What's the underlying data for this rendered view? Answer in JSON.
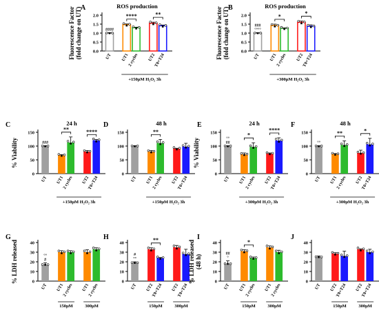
{
  "chart_data": [
    {
      "panel": "A",
      "type": "bar",
      "title": "ROS production",
      "ylabel": "Fluorescence Factor\n(fold change on UT)",
      "ylim": [
        0,
        2
      ],
      "yticks": [
        0,
        0.5,
        1,
        1.5,
        2
      ],
      "ytick_labels": [
        "0.0",
        "0.5",
        "1.0",
        "1.5",
        "2.0"
      ],
      "categories": [
        "UT",
        "UT1",
        "2 cycles",
        "UT2",
        "T0+T24"
      ],
      "values": [
        1.0,
        1.47,
        1.3,
        1.55,
        1.41
      ],
      "errors": [
        0.02,
        0.04,
        0.03,
        0.06,
        0.04
      ],
      "bar_colors": [
        "#a0a0a0",
        "#ff8a00",
        "#2dbb2d",
        "#ff1a1a",
        "#1a1aff"
      ],
      "style": "outline",
      "groups": [
        [
          0
        ],
        [
          1,
          2
        ],
        [
          3,
          4
        ]
      ],
      "treatment": "+150μM H₂O₂ 3h",
      "treatment_span": [
        1,
        4
      ],
      "ut_marker": "####",
      "brackets": [
        {
          "from": 1,
          "to": 2,
          "label": "****"
        },
        {
          "from": 3,
          "to": 4,
          "label": "**"
        }
      ]
    },
    {
      "panel": "B",
      "type": "bar",
      "title": "ROS production",
      "ylabel": "Fluorescence Factor\n(fold change on UT)",
      "ylim": [
        0,
        2
      ],
      "yticks": [
        0,
        0.5,
        1,
        1.5,
        2
      ],
      "ytick_labels": [
        "0.0",
        "0.5",
        "1.0",
        "1.5",
        "2.0"
      ],
      "categories": [
        "UT",
        "UT1",
        "2 cycles",
        "UT2",
        "T0+T24"
      ],
      "values": [
        1.0,
        1.42,
        1.27,
        1.6,
        1.38
      ],
      "errors": [
        0.02,
        0.08,
        0.02,
        0.07,
        0.08
      ],
      "bar_colors": [
        "#a0a0a0",
        "#ff8a00",
        "#2dbb2d",
        "#ff1a1a",
        "#1a1aff"
      ],
      "style": "outline",
      "groups": [
        [
          0
        ],
        [
          1,
          2
        ],
        [
          3,
          4
        ]
      ],
      "treatment": "+300μM H₂O₂ 3h",
      "treatment_span": [
        1,
        4
      ],
      "ut_marker": "###\n°°°°",
      "brackets": [
        {
          "from": 1,
          "to": 2,
          "label": "*"
        },
        {
          "from": 3,
          "to": 4,
          "label": "*"
        }
      ]
    },
    {
      "panel": "C",
      "type": "bar",
      "title": "24 h",
      "ylabel": "% Viability",
      "ylim": [
        0,
        150
      ],
      "yticks": [
        0,
        50,
        100,
        150
      ],
      "ytick_labels": [
        "0",
        "50",
        "100",
        "150"
      ],
      "categories": [
        "UT",
        "UT1",
        "2 cycles",
        "UT2",
        "T0+T24"
      ],
      "values": [
        100,
        67,
        113,
        80,
        121
      ],
      "errors": [
        1,
        2,
        20,
        4,
        3
      ],
      "bar_colors": [
        "#a0a0a0",
        "#ff8a00",
        "#2dbb2d",
        "#ff1a1a",
        "#1a1aff"
      ],
      "style": "filled",
      "groups": [
        [
          0
        ],
        [
          1,
          2
        ],
        [
          3,
          4
        ]
      ],
      "treatment": "+150μM H₂O₂ 3h",
      "treatment_span": [
        1,
        4
      ],
      "ut_marker": "###",
      "brackets": [
        {
          "from": 1,
          "to": 2,
          "label": "**"
        },
        {
          "from": 3,
          "to": 4,
          "label": "****"
        }
      ]
    },
    {
      "panel": "D",
      "type": "bar",
      "title": "48 h",
      "ylabel": "",
      "ylim": [
        0,
        150
      ],
      "yticks": [
        0,
        50,
        100,
        150
      ],
      "ytick_labels": [
        "0",
        "50",
        "100",
        "150"
      ],
      "categories": [
        "UT",
        "UT1",
        "2 cycles",
        "UT2",
        "T0+T24"
      ],
      "values": [
        100,
        80,
        111,
        91,
        98
      ],
      "errors": [
        1,
        4,
        13,
        1,
        12
      ],
      "bar_colors": [
        "#a0a0a0",
        "#ff8a00",
        "#2dbb2d",
        "#ff1a1a",
        "#1a1aff"
      ],
      "style": "filled",
      "groups": [
        [
          0
        ],
        [
          1,
          2
        ],
        [
          3,
          4
        ]
      ],
      "treatment": "+150μM H₂O₂ 3h",
      "treatment_span": [
        1,
        4
      ],
      "ut_marker": "",
      "brackets": [
        {
          "from": 1,
          "to": 2,
          "label": "**"
        }
      ]
    },
    {
      "panel": "E",
      "type": "bar",
      "title": "24 h",
      "ylabel": "% Viability",
      "ylim": [
        0,
        150
      ],
      "yticks": [
        0,
        50,
        100,
        150
      ],
      "ytick_labels": [
        "0",
        "50",
        "100",
        "150"
      ],
      "categories": [
        "UT",
        "UT1",
        "2 cycles",
        "UT2",
        "T0+T24"
      ],
      "values": [
        100,
        70,
        97,
        73,
        120
      ],
      "errors": [
        1,
        5,
        15,
        2,
        10
      ],
      "bar_colors": [
        "#a0a0a0",
        "#ff8a00",
        "#2dbb2d",
        "#ff1a1a",
        "#1a1aff"
      ],
      "style": "filled",
      "groups": [
        [
          0
        ],
        [
          1,
          2
        ],
        [
          3,
          4
        ]
      ],
      "treatment": "+300μM H₂O₂ 3h",
      "treatment_span": [
        1,
        4
      ],
      "ut_marker": "°°\n##",
      "brackets": [
        {
          "from": 1,
          "to": 2,
          "label": "*"
        },
        {
          "from": 3,
          "to": 4,
          "label": "****"
        }
      ]
    },
    {
      "panel": "F",
      "type": "bar",
      "title": "48 h",
      "ylabel": "",
      "ylim": [
        0,
        150
      ],
      "yticks": [
        0,
        50,
        100,
        150
      ],
      "ytick_labels": [
        "0",
        "50",
        "100",
        "150"
      ],
      "categories": [
        "UT",
        "UT1",
        "2 cycles",
        "UT2",
        "T0+T24"
      ],
      "values": [
        100,
        71,
        104,
        75,
        106
      ],
      "errors": [
        1,
        2,
        15,
        10,
        22
      ],
      "bar_colors": [
        "#a0a0a0",
        "#ff8a00",
        "#2dbb2d",
        "#ff1a1a",
        "#1a1aff"
      ],
      "style": "filled",
      "groups": [
        [
          0
        ],
        [
          1,
          2
        ],
        [
          3,
          4
        ]
      ],
      "treatment": "+300μM H₂O₂ 3h",
      "treatment_span": [
        1,
        4
      ],
      "ut_marker": "°°",
      "brackets": [
        {
          "from": 1,
          "to": 2,
          "label": "**"
        },
        {
          "from": 3,
          "to": 4,
          "label": "*"
        }
      ]
    },
    {
      "panel": "G",
      "type": "bar",
      "title": "",
      "ylabel": "% LDH released",
      "ylim": [
        0,
        40
      ],
      "yticks": [
        0,
        10,
        20,
        30,
        40
      ],
      "ytick_labels": [
        "0",
        "10",
        "20",
        "30",
        "40"
      ],
      "categories": [
        "UT",
        "UT1",
        "2 cycles",
        "UT1",
        "2 cycles"
      ],
      "values": [
        17,
        30,
        30,
        30,
        33
      ],
      "errors": [
        2,
        1.5,
        1.5,
        2.5,
        1.5
      ],
      "bar_colors": [
        "#a0a0a0",
        "#ff8a00",
        "#2dbb2d",
        "#ff8a00",
        "#2dbb2d"
      ],
      "style": "filled",
      "groups": [
        [
          0
        ],
        [
          1,
          2
        ],
        [
          3,
          4
        ]
      ],
      "group_labels": [
        {
          "span": [
            1,
            2
          ],
          "text": "150μM"
        },
        {
          "span": [
            3,
            4
          ],
          "text": "300μM"
        }
      ],
      "ut_marker": "°°\n#",
      "brackets": []
    },
    {
      "panel": "H",
      "type": "bar",
      "title": "",
      "ylabel": "",
      "ylim": [
        0,
        40
      ],
      "yticks": [
        0,
        10,
        20,
        30,
        40
      ],
      "ytick_labels": [
        "0",
        "10",
        "20",
        "30",
        "40"
      ],
      "categories": [
        "UT",
        "UT2",
        "T0+T24",
        "UT2",
        "T0+T24"
      ],
      "values": [
        19,
        33,
        24,
        35,
        28
      ],
      "errors": [
        1,
        1.5,
        0.5,
        2,
        5
      ],
      "bar_colors": [
        "#a0a0a0",
        "#ff1a1a",
        "#1a1aff",
        "#ff1a1a",
        "#1a1aff"
      ],
      "style": "filled",
      "groups": [
        [
          0
        ],
        [
          1,
          2
        ],
        [
          3,
          4
        ]
      ],
      "group_labels": [
        {
          "span": [
            1,
            2
          ],
          "text": "150μM"
        },
        {
          "span": [
            3,
            4
          ],
          "text": "300μM"
        }
      ],
      "ut_marker": "#\n°°",
      "brackets": [
        {
          "from": 1,
          "to": 2,
          "label": "**"
        }
      ]
    },
    {
      "panel": "I",
      "type": "bar",
      "title": "",
      "ylabel": "% LDH released\n(48 h)",
      "ylim": [
        0,
        40
      ],
      "yticks": [
        0,
        10,
        20,
        30,
        40
      ],
      "ytick_labels": [
        "0",
        "10",
        "20",
        "30",
        "40"
      ],
      "categories": [
        "UT",
        "UT1",
        "2 cycles",
        "UT1",
        "2 cycles"
      ],
      "values": [
        18,
        31,
        24,
        35,
        30
      ],
      "errors": [
        3,
        1.5,
        1,
        1.5,
        2
      ],
      "bar_colors": [
        "#a0a0a0",
        "#ff8a00",
        "#2dbb2d",
        "#ff8a00",
        "#2dbb2d"
      ],
      "style": "filled",
      "groups": [
        [
          0
        ],
        [
          1,
          2
        ],
        [
          3,
          4
        ]
      ],
      "group_labels": [
        {
          "span": [
            1,
            2
          ],
          "text": "150μM"
        },
        {
          "span": [
            3,
            4
          ],
          "text": "300μM"
        }
      ],
      "ut_marker": "##\n°",
      "brackets": [
        {
          "from": 1,
          "to": 2,
          "label": "*"
        }
      ]
    },
    {
      "panel": "J",
      "type": "bar",
      "title": "",
      "ylabel": "",
      "ylim": [
        0,
        40
      ],
      "yticks": [
        0,
        10,
        20,
        30,
        40
      ],
      "ytick_labels": [
        "0",
        "10",
        "20",
        "30",
        "40"
      ],
      "categories": [
        "UT",
        "UT2",
        "T0+T24",
        "UT2",
        "T0+T24"
      ],
      "values": [
        25,
        28.5,
        26,
        33,
        30
      ],
      "errors": [
        1,
        1,
        5,
        0.5,
        3
      ],
      "bar_colors": [
        "#a0a0a0",
        "#ff1a1a",
        "#1a1aff",
        "#ff1a1a",
        "#1a1aff"
      ],
      "style": "filled",
      "groups": [
        [
          0
        ],
        [
          1,
          2
        ],
        [
          3,
          4
        ]
      ],
      "group_labels": [
        {
          "span": [
            1,
            2
          ],
          "text": "150μM"
        },
        {
          "span": [
            3,
            4
          ],
          "text": "300μM"
        }
      ],
      "ut_marker": "",
      "brackets": []
    }
  ]
}
